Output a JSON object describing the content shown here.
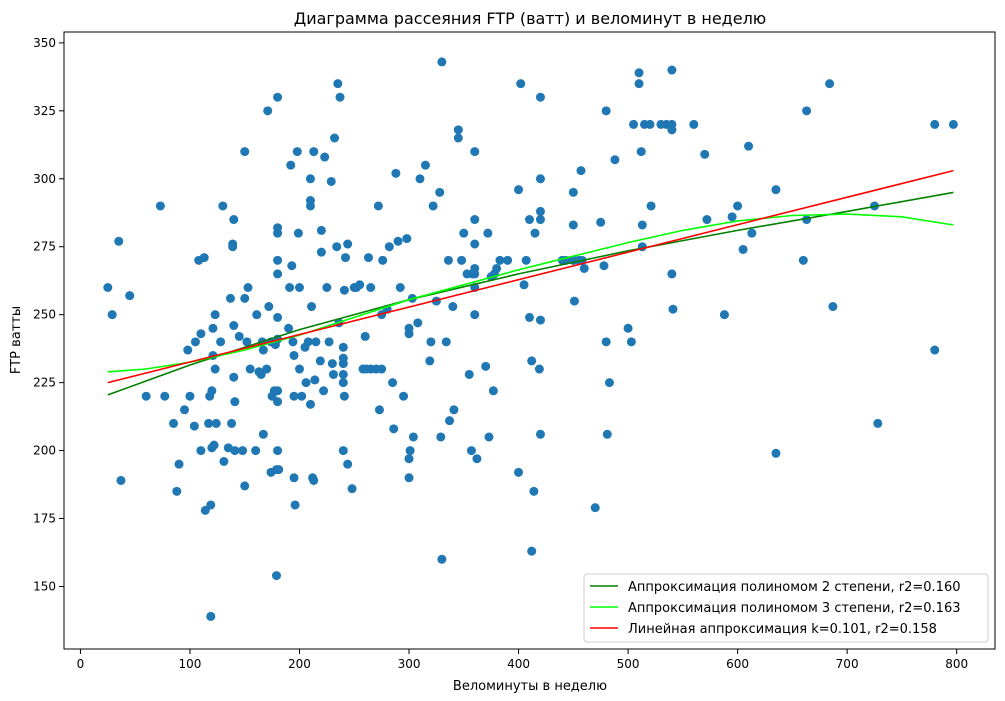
{
  "chart_data": {
    "type": "scatter",
    "title": "Диаграмма рассеяния FTP (ватт) и веломинут в неделю",
    "xlabel": "Веломинуты в неделю",
    "ylabel": "FTP ватты",
    "xlim": [
      -15,
      835
    ],
    "ylim": [
      127,
      354
    ],
    "xticks": [
      0,
      100,
      200,
      300,
      400,
      500,
      600,
      700,
      800
    ],
    "yticks": [
      150,
      175,
      200,
      225,
      250,
      275,
      300,
      325,
      350
    ],
    "grid": false,
    "legend_position": "lower-right",
    "point_color": "#1f77b4",
    "points": [
      [
        25,
        260
      ],
      [
        29,
        250
      ],
      [
        35,
        277
      ],
      [
        37,
        189
      ],
      [
        45,
        257
      ],
      [
        60,
        220
      ],
      [
        73,
        290
      ],
      [
        77,
        220
      ],
      [
        85,
        210
      ],
      [
        88,
        185
      ],
      [
        90,
        195
      ],
      [
        95,
        215
      ],
      [
        98,
        237
      ],
      [
        100,
        220
      ],
      [
        104,
        209
      ],
      [
        105,
        240
      ],
      [
        108,
        270
      ],
      [
        110,
        243
      ],
      [
        110,
        200
      ],
      [
        113,
        271
      ],
      [
        114,
        178
      ],
      [
        117,
        210
      ],
      [
        118,
        220
      ],
      [
        119,
        180
      ],
      [
        119,
        139
      ],
      [
        120,
        222
      ],
      [
        120,
        201
      ],
      [
        121,
        245
      ],
      [
        121,
        235
      ],
      [
        122,
        202
      ],
      [
        123,
        250
      ],
      [
        123,
        230
      ],
      [
        124,
        210
      ],
      [
        128,
        240
      ],
      [
        130,
        290
      ],
      [
        131,
        196
      ],
      [
        135,
        201
      ],
      [
        137,
        256
      ],
      [
        138,
        210
      ],
      [
        139,
        275
      ],
      [
        139,
        276
      ],
      [
        140,
        285
      ],
      [
        140,
        246
      ],
      [
        140,
        227
      ],
      [
        141,
        218
      ],
      [
        141,
        200
      ],
      [
        145,
        242
      ],
      [
        148,
        200
      ],
      [
        150,
        310
      ],
      [
        150,
        256
      ],
      [
        150,
        187
      ],
      [
        152,
        240
      ],
      [
        153,
        260
      ],
      [
        155,
        230
      ],
      [
        160,
        200
      ],
      [
        161,
        250
      ],
      [
        163,
        229
      ],
      [
        165,
        228
      ],
      [
        166,
        240
      ],
      [
        167,
        206
      ],
      [
        167,
        237
      ],
      [
        170,
        230
      ],
      [
        171,
        325
      ],
      [
        172,
        253
      ],
      [
        174,
        240
      ],
      [
        174,
        192
      ],
      [
        175,
        220
      ],
      [
        177,
        222
      ],
      [
        178,
        239
      ],
      [
        179,
        193
      ],
      [
        179,
        154
      ],
      [
        180,
        330
      ],
      [
        180,
        280
      ],
      [
        180,
        282
      ],
      [
        180,
        270
      ],
      [
        180,
        265
      ],
      [
        180,
        249
      ],
      [
        180,
        241
      ],
      [
        180,
        222
      ],
      [
        180,
        218
      ],
      [
        180,
        200
      ],
      [
        181,
        193
      ],
      [
        190,
        245
      ],
      [
        191,
        260
      ],
      [
        192,
        305
      ],
      [
        193,
        268
      ],
      [
        194,
        240
      ],
      [
        195,
        235
      ],
      [
        195,
        220
      ],
      [
        195,
        190
      ],
      [
        196,
        180
      ],
      [
        198,
        310
      ],
      [
        199,
        280
      ],
      [
        200,
        260
      ],
      [
        200,
        230
      ],
      [
        202,
        220
      ],
      [
        205,
        238
      ],
      [
        206,
        225
      ],
      [
        208,
        240
      ],
      [
        210,
        217
      ],
      [
        210,
        290
      ],
      [
        210,
        292
      ],
      [
        210,
        300
      ],
      [
        211,
        253
      ],
      [
        212,
        190
      ],
      [
        213,
        310
      ],
      [
        213,
        189
      ],
      [
        214,
        226
      ],
      [
        215,
        240
      ],
      [
        219,
        233
      ],
      [
        220,
        281
      ],
      [
        220,
        273
      ],
      [
        222,
        222
      ],
      [
        223,
        308
      ],
      [
        225,
        260
      ],
      [
        227,
        240
      ],
      [
        229,
        299
      ],
      [
        230,
        232
      ],
      [
        231,
        228
      ],
      [
        232,
        315
      ],
      [
        234,
        275
      ],
      [
        235,
        335
      ],
      [
        236,
        247
      ],
      [
        237,
        330
      ],
      [
        240,
        232
      ],
      [
        240,
        228
      ],
      [
        240,
        234
      ],
      [
        240,
        238
      ],
      [
        240,
        200
      ],
      [
        240,
        225
      ],
      [
        241,
        220
      ],
      [
        241,
        259
      ],
      [
        242,
        271
      ],
      [
        244,
        276
      ],
      [
        244,
        195
      ],
      [
        248,
        186
      ],
      [
        250,
        260
      ],
      [
        252,
        260
      ],
      [
        255,
        261
      ],
      [
        258,
        230
      ],
      [
        260,
        242
      ],
      [
        261,
        230
      ],
      [
        263,
        271
      ],
      [
        265,
        260
      ],
      [
        265,
        230
      ],
      [
        270,
        230
      ],
      [
        272,
        290
      ],
      [
        273,
        215
      ],
      [
        275,
        250
      ],
      [
        275,
        230
      ],
      [
        276,
        270
      ],
      [
        280,
        252
      ],
      [
        282,
        275
      ],
      [
        285,
        225
      ],
      [
        286,
        208
      ],
      [
        288,
        302
      ],
      [
        290,
        277
      ],
      [
        292,
        260
      ],
      [
        295,
        220
      ],
      [
        298,
        278
      ],
      [
        300,
        245
      ],
      [
        300,
        243
      ],
      [
        300,
        197
      ],
      [
        300,
        190
      ],
      [
        301,
        200
      ],
      [
        303,
        256
      ],
      [
        304,
        205
      ],
      [
        308,
        247
      ],
      [
        310,
        300
      ],
      [
        315,
        305
      ],
      [
        319,
        233
      ],
      [
        320,
        240
      ],
      [
        322,
        290
      ],
      [
        325,
        255
      ],
      [
        328,
        295
      ],
      [
        329,
        205
      ],
      [
        330,
        343
      ],
      [
        330,
        160
      ],
      [
        334,
        240
      ],
      [
        336,
        270
      ],
      [
        337,
        211
      ],
      [
        340,
        253
      ],
      [
        341,
        215
      ],
      [
        345,
        318
      ],
      [
        345,
        315
      ],
      [
        348,
        270
      ],
      [
        350,
        280
      ],
      [
        353,
        265
      ],
      [
        355,
        228
      ],
      [
        357,
        200
      ],
      [
        358,
        265
      ],
      [
        360,
        285
      ],
      [
        360,
        310
      ],
      [
        360,
        276
      ],
      [
        360,
        267
      ],
      [
        360,
        265
      ],
      [
        360,
        260
      ],
      [
        360,
        250
      ],
      [
        362,
        197
      ],
      [
        370,
        231
      ],
      [
        372,
        280
      ],
      [
        373,
        205
      ],
      [
        375,
        264
      ],
      [
        377,
        222
      ],
      [
        378,
        265
      ],
      [
        380,
        267
      ],
      [
        383,
        270
      ],
      [
        390,
        270
      ],
      [
        400,
        296
      ],
      [
        400,
        192
      ],
      [
        402,
        335
      ],
      [
        405,
        261
      ],
      [
        407,
        270
      ],
      [
        410,
        285
      ],
      [
        410,
        249
      ],
      [
        412,
        163
      ],
      [
        412,
        233
      ],
      [
        414,
        185
      ],
      [
        415,
        280
      ],
      [
        419,
        230
      ],
      [
        420,
        330
      ],
      [
        420,
        300
      ],
      [
        420,
        288
      ],
      [
        420,
        285
      ],
      [
        420,
        248
      ],
      [
        420,
        206
      ],
      [
        440,
        270
      ],
      [
        443,
        270
      ],
      [
        450,
        295
      ],
      [
        450,
        283
      ],
      [
        450,
        270
      ],
      [
        451,
        255
      ],
      [
        455,
        270
      ],
      [
        457,
        303
      ],
      [
        458,
        270
      ],
      [
        460,
        267
      ],
      [
        470,
        179
      ],
      [
        475,
        284
      ],
      [
        478,
        268
      ],
      [
        480,
        325
      ],
      [
        480,
        240
      ],
      [
        481,
        206
      ],
      [
        483,
        225
      ],
      [
        488,
        307
      ],
      [
        500,
        245
      ],
      [
        503,
        240
      ],
      [
        505,
        320
      ],
      [
        510,
        335
      ],
      [
        510,
        339
      ],
      [
        512,
        310
      ],
      [
        513,
        275
      ],
      [
        513,
        283
      ],
      [
        515,
        320
      ],
      [
        520,
        320
      ],
      [
        521,
        290
      ],
      [
        530,
        320
      ],
      [
        535,
        320
      ],
      [
        540,
        340
      ],
      [
        540,
        318
      ],
      [
        540,
        320
      ],
      [
        540,
        265
      ],
      [
        541,
        252
      ],
      [
        560,
        320
      ],
      [
        570,
        309
      ],
      [
        572,
        285
      ],
      [
        588,
        250
      ],
      [
        595,
        286
      ],
      [
        600,
        290
      ],
      [
        605,
        274
      ],
      [
        613,
        280
      ],
      [
        610,
        312
      ],
      [
        635,
        296
      ],
      [
        635,
        199
      ],
      [
        660,
        270
      ],
      [
        663,
        325
      ],
      [
        663,
        285
      ],
      [
        684,
        335
      ],
      [
        687,
        253
      ],
      [
        725,
        290
      ],
      [
        728,
        210
      ],
      [
        780,
        320
      ],
      [
        780,
        237
      ],
      [
        797,
        320
      ]
    ],
    "series": [
      {
        "name": "Аппроксимация полиномом 2 степени, r2=0.160",
        "color": "#008000",
        "x": [
          25,
          100,
          200,
          300,
          400,
          500,
          600,
          700,
          797
        ],
        "y": [
          220.5,
          231.5,
          244.5,
          255.5,
          265.0,
          273.5,
          281.0,
          288.0,
          295.0
        ]
      },
      {
        "name": "Аппроксимация полиномом 3 степени, r2=0.163",
        "color": "#00ff00",
        "x": [
          25,
          60,
          100,
          150,
          200,
          250,
          300,
          350,
          400,
          450,
          500,
          550,
          600,
          650,
          700,
          750,
          797
        ],
        "y": [
          229.0,
          230.0,
          232.5,
          237.0,
          242.5,
          249.0,
          255.5,
          261.0,
          266.5,
          271.5,
          276.5,
          281.0,
          284.5,
          286.5,
          287.0,
          286.0,
          283.0
        ]
      },
      {
        "name": "Линейная аппроксимация k=0.101, r2=0.158",
        "color": "#ff0000",
        "x": [
          25,
          797
        ],
        "y": [
          225.0,
          303.0
        ]
      }
    ]
  }
}
